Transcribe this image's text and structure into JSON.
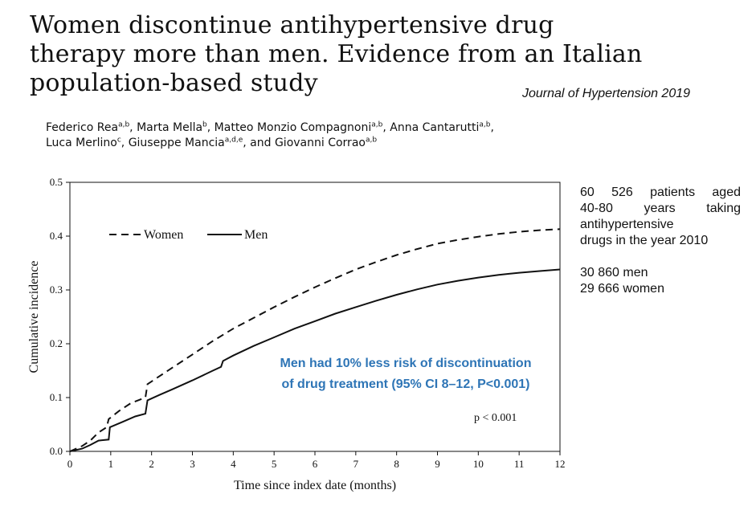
{
  "header": {
    "title_lines": [
      "Women discontinue antihypertensive drug",
      "therapy more than men. Evidence from an Italian",
      "population-based study"
    ],
    "journal": "Journal of Hypertension 2019",
    "authors": [
      {
        "name": "Federico Rea",
        "sup": "a,b",
        "sep": ", "
      },
      {
        "name": "Marta Mella",
        "sup": "b",
        "sep": ", "
      },
      {
        "name": "Matteo Monzio Compagnoni",
        "sup": "a,b",
        "sep": ", "
      },
      {
        "name": "Anna Cantarutti",
        "sup": "a,b",
        "sep": ","
      },
      {
        "name": "Luca Merlino",
        "sup": "c",
        "sep": ", "
      },
      {
        "name": "Giuseppe Mancia",
        "sup": "a,d,e",
        "sep": ", and "
      },
      {
        "name": "Giovanni Corrao",
        "sup": "a,b",
        "sep": ""
      }
    ]
  },
  "side_text": {
    "lines": [
      "60 526 patients aged",
      "40-80 years taking",
      "antihypertensive",
      "drugs in the year 2010"
    ],
    "counts": [
      "30 860 men",
      "29 666 women"
    ]
  },
  "annotations": {
    "callout_lines": [
      "Men had 10% less risk of discontinuation",
      "of drug treatment (95% CI 8–12, P<0.001)"
    ],
    "pvalue": "p < 0.001"
  },
  "colors": {
    "callout": "#2E75B6",
    "axis": "#111111"
  },
  "chart_data": {
    "type": "line",
    "xlabel": "Time since index date (months)",
    "ylabel": "Cumulative incidence",
    "xlim": [
      0,
      12
    ],
    "ylim": [
      0,
      0.5
    ],
    "xticks": [
      "0",
      "1",
      "2",
      "3",
      "4",
      "5",
      "6",
      "7",
      "8",
      "9",
      "10",
      "11",
      "12"
    ],
    "yticks": [
      "0.0",
      "0.1",
      "0.2",
      "0.3",
      "0.4",
      "0.5"
    ],
    "legend_position": "top-left",
    "series": [
      {
        "name": "Women",
        "style": "dashed",
        "x": [
          0,
          0.3,
          0.5,
          0.7,
          0.9,
          0.95,
          1.2,
          1.5,
          1.85,
          1.9,
          2.2,
          2.5,
          3.0,
          3.5,
          4.0,
          4.5,
          5.0,
          5.5,
          6.0,
          6.5,
          7.0,
          7.5,
          8.0,
          8.5,
          9.0,
          9.5,
          10.0,
          10.5,
          11.0,
          11.5,
          12.0
        ],
        "y": [
          0,
          0.01,
          0.02,
          0.035,
          0.045,
          0.06,
          0.075,
          0.09,
          0.1,
          0.125,
          0.14,
          0.155,
          0.18,
          0.205,
          0.228,
          0.248,
          0.268,
          0.287,
          0.305,
          0.322,
          0.338,
          0.352,
          0.365,
          0.376,
          0.386,
          0.393,
          0.399,
          0.404,
          0.408,
          0.411,
          0.413
        ]
      },
      {
        "name": "Men",
        "style": "solid",
        "x": [
          0,
          0.3,
          0.5,
          0.7,
          0.95,
          0.98,
          1.3,
          1.6,
          1.85,
          1.9,
          2.2,
          2.5,
          3.0,
          3.5,
          3.7,
          3.75,
          4.0,
          4.5,
          5.0,
          5.5,
          6.0,
          6.5,
          7.0,
          7.5,
          8.0,
          8.5,
          9.0,
          9.5,
          10.0,
          10.5,
          11.0,
          11.5,
          12.0
        ],
        "y": [
          0,
          0.005,
          0.012,
          0.02,
          0.022,
          0.045,
          0.055,
          0.065,
          0.07,
          0.095,
          0.105,
          0.115,
          0.132,
          0.15,
          0.157,
          0.168,
          0.178,
          0.196,
          0.212,
          0.228,
          0.242,
          0.256,
          0.268,
          0.28,
          0.291,
          0.301,
          0.31,
          0.317,
          0.323,
          0.328,
          0.332,
          0.335,
          0.338
        ]
      }
    ]
  }
}
